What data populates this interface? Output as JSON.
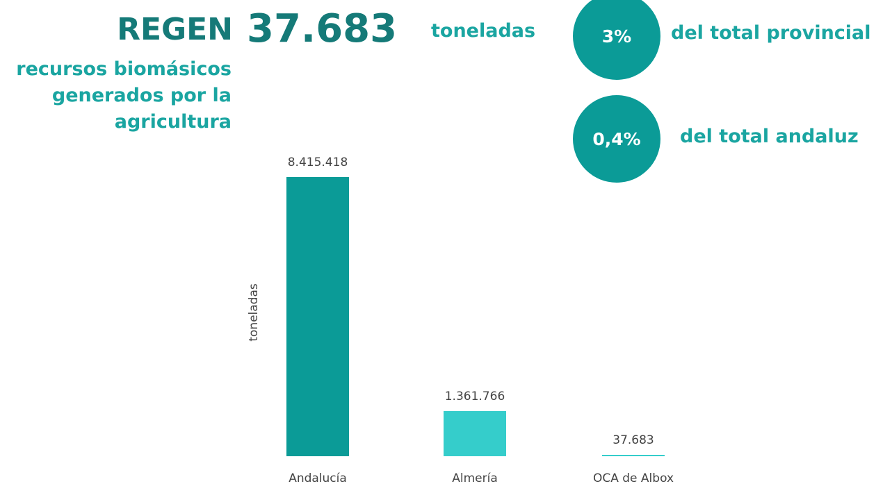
{
  "header": {
    "name": "REGEN",
    "amount": "37.683",
    "unit": "toneladas",
    "subtitle_lines": [
      "recursos biomásicos",
      "generados por la",
      "agricultura"
    ],
    "stats": [
      {
        "value": "3%",
        "label": "del total provincial"
      },
      {
        "value": "0,4%",
        "label": "del total andaluz"
      }
    ]
  },
  "chart_data": {
    "type": "bar",
    "y_label": "toneladas",
    "categories": [
      "Andalucía",
      "Almería",
      "OCA de Albox"
    ],
    "values": [
      8415418,
      1361766,
      37683
    ],
    "value_labels": [
      "8.415.418",
      "1.361.766",
      "37.683"
    ],
    "colors": [
      "#0b9b97",
      "#35cdcb",
      "#35cdcb"
    ],
    "ylim": [
      0,
      8415418
    ]
  }
}
